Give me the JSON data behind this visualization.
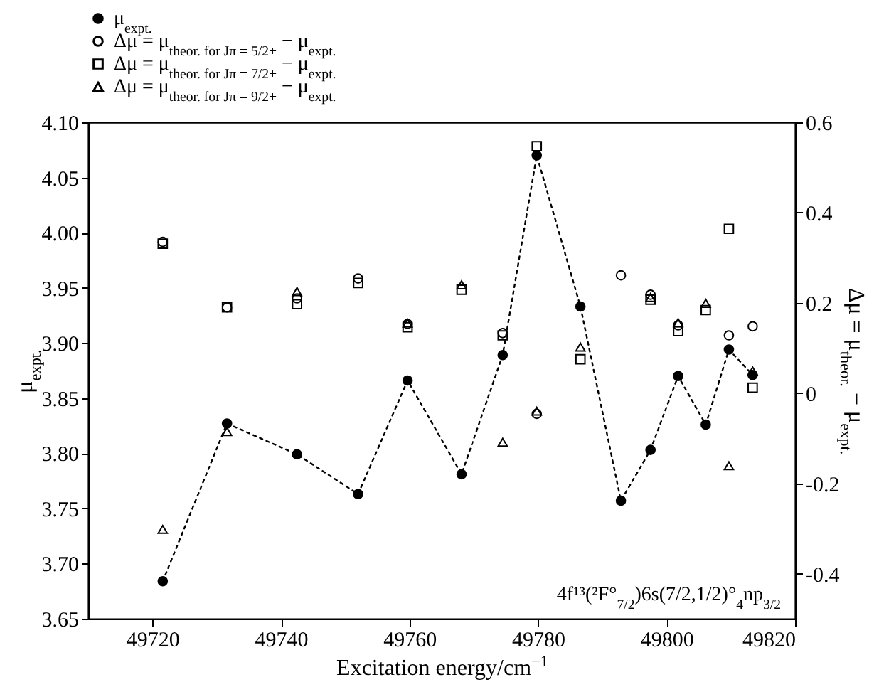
{
  "chart_data": {
    "type": "line",
    "xlabel": "Excitation energy/cm$^{−1}$",
    "ylabel": "μ$_{expt.}$",
    "y2label": "Δμ = μ$_{theor.}$ − μ$_{expt.}$",
    "x": [
      49721.6,
      49731.6,
      49742.5,
      49752,
      49759.7,
      49768.1,
      49774.5,
      49779.8,
      49786.6,
      49792.9,
      49797.5,
      49801.8,
      49806.1,
      49809.7,
      49813.4
    ],
    "xlim": [
      49710,
      49820
    ],
    "xticks": [
      49720,
      49740,
      49760,
      49780,
      49800,
      49820
    ],
    "ylim": [
      3.65,
      4.1
    ],
    "yticks": [
      3.65,
      {
        "value": 3.7,
        "label": "3.70"
      },
      3.75,
      {
        "value": 3.8,
        "label": "3.80"
      },
      3.85,
      {
        "value": 3.9,
        "label": "3.90"
      },
      3.95,
      {
        "value": 4.0,
        "label": "4.00"
      },
      4.05,
      {
        "value": 4.1,
        "label": "4.10"
      }
    ],
    "y2lim": [
      -0.5,
      0.6
    ],
    "y2ticks": [
      -0.4,
      -0.2,
      0,
      0.2,
      0.4,
      0.6
    ],
    "legend": "top",
    "annotations": [
      "4f¹³(²F°$_{7/2}$)6s(7/2,1/2)°$_{4}$np$_{3/2}$"
    ],
    "series": [
      {
        "name": "μ$_{expt.}$",
        "type": "line",
        "color": "#000000",
        "marker": "circle",
        "line_style": "dotted",
        "values": [
          3.684,
          3.827,
          3.799,
          3.763,
          3.866,
          3.781,
          3.889,
          4.07,
          3.933,
          3.757,
          3.803,
          3.87,
          3.826,
          3.894,
          3.871
        ]
      },
      {
        "name": "Δμ = μ$_{theor. for Jπ = 5/2+}$ − μ$_{expt.}$",
        "type": "scatter",
        "axis": "y2",
        "color": "#000000",
        "marker": "circle",
        "values": [
          0.335,
          0.19,
          0.21,
          0.254,
          0.153,
          null,
          0.133,
          -0.046,
          null,
          0.261,
          0.218,
          0.15,
          null,
          0.128,
          0.148
        ]
      },
      {
        "name": "Δμ = μ$_{theor. for Jπ = 7/2+}$ − μ$_{expt.}$",
        "type": "scatter",
        "axis": "y2",
        "color": "#000000",
        "marker": "square",
        "values": [
          0.331,
          0.19,
          0.197,
          0.244,
          0.146,
          0.229,
          0.128,
          0.547,
          0.075,
          null,
          0.207,
          0.137,
          0.184,
          0.364,
          0.012
        ]
      },
      {
        "name": "Δμ = μ$_{theor. for Jπ = 9/2+}$ − μ$_{expt.}$",
        "type": "scatter",
        "axis": "y2",
        "color": "#000000",
        "marker": "triangle",
        "values": [
          -0.302,
          -0.085,
          0.225,
          null,
          0.155,
          0.24,
          -0.109,
          -0.04,
          0.102,
          null,
          0.212,
          0.156,
          0.199,
          -0.161,
          0.049
        ]
      }
    ]
  }
}
